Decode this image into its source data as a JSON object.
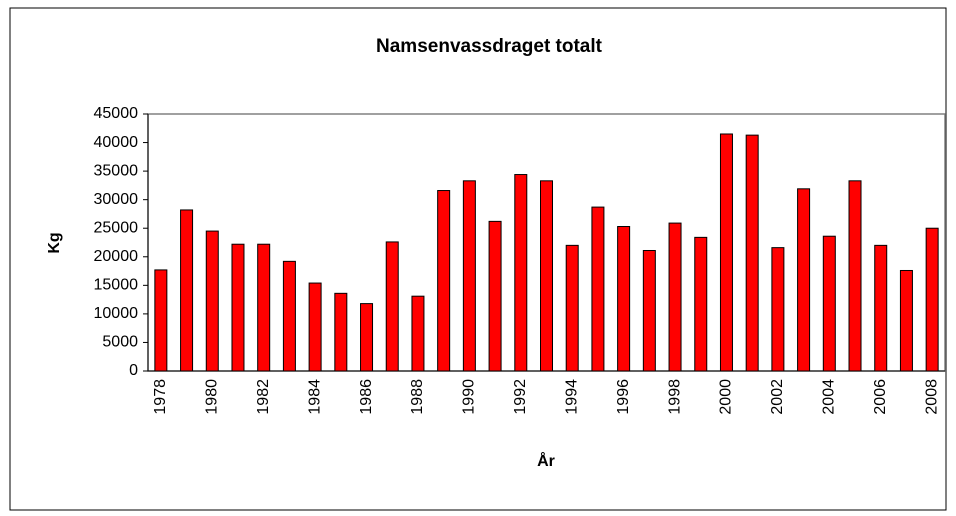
{
  "chart_data": {
    "type": "bar",
    "title": "Namsenvassdraget totalt",
    "x_label": "År",
    "y_label": "Kg",
    "categories": [
      "1978",
      null,
      "1980",
      null,
      "1982",
      null,
      "1984",
      null,
      "1986",
      null,
      "1988",
      null,
      "1990",
      null,
      "1992",
      null,
      "1994",
      null,
      "1996",
      null,
      "1998",
      null,
      "2000",
      null,
      "2002",
      null,
      "2004",
      null,
      "2006",
      null,
      "2008"
    ],
    "values": [
      17700,
      28200,
      24500,
      22200,
      22200,
      19200,
      15400,
      13600,
      11800,
      22600,
      13100,
      31600,
      33300,
      26200,
      34400,
      33300,
      22000,
      28700,
      25300,
      21100,
      25900,
      23400,
      41500,
      41300,
      21600,
      31900,
      23600,
      33300,
      22000,
      17600,
      25000
    ],
    "color": "#ff0000",
    "ylim": [
      0,
      45000
    ],
    "yticks": [
      0,
      5000,
      10000,
      15000,
      20000,
      25000,
      30000,
      35000,
      40000,
      45000
    ],
    "grid": false
  }
}
